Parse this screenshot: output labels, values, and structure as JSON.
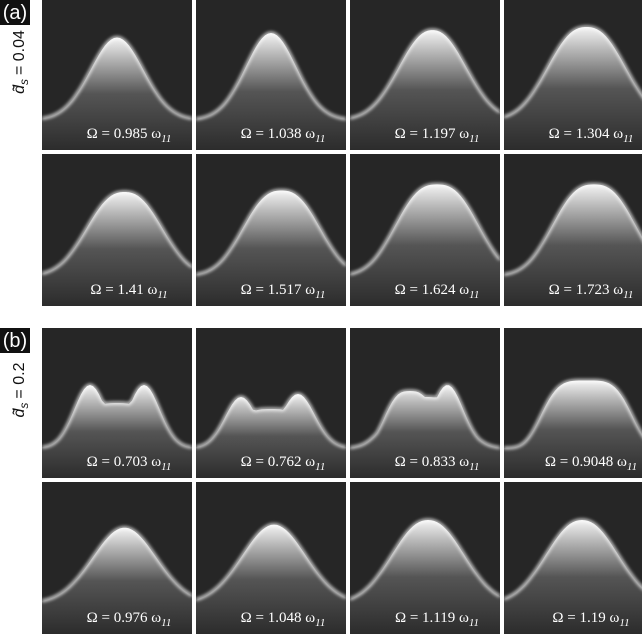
{
  "figure": {
    "groups": [
      {
        "tag": "(a)",
        "ylabel": {
          "symbol": "d̃",
          "sub": "s",
          "value": "= 0.04"
        },
        "panels": [
          {
            "text": "Ω = 0.985 ω",
            "sub": "11"
          },
          {
            "text": "Ω = 1.038 ω",
            "sub": "11"
          },
          {
            "text": "Ω = 1.197 ω",
            "sub": "11"
          },
          {
            "text": "Ω = 1.304 ω",
            "sub": "11"
          },
          {
            "text": "Ω = 1.41 ω",
            "sub": "11"
          },
          {
            "text": "Ω = 1.517 ω",
            "sub": "11"
          },
          {
            "text": "Ω = 1.624 ω",
            "sub": "11"
          },
          {
            "text": "Ω = 1.723 ω",
            "sub": "11"
          }
        ]
      },
      {
        "tag": "(b)",
        "ylabel": {
          "symbol": "d̃",
          "sub": "s",
          "value": "= 0.2"
        },
        "panels": [
          {
            "text": "Ω = 0.703 ω",
            "sub": "11"
          },
          {
            "text": "Ω = 0.762 ω",
            "sub": "11"
          },
          {
            "text": "Ω = 0.833 ω",
            "sub": "11"
          },
          {
            "text": "Ω = 0.9048 ω",
            "sub": "11"
          },
          {
            "text": "Ω = 0.976 ω",
            "sub": "11"
          },
          {
            "text": "Ω = 1.048 ω",
            "sub": "11"
          },
          {
            "text": "Ω = 1.119 ω",
            "sub": "11"
          },
          {
            "text": "Ω = 1.19 ω",
            "sub": "11"
          }
        ]
      }
    ]
  }
}
